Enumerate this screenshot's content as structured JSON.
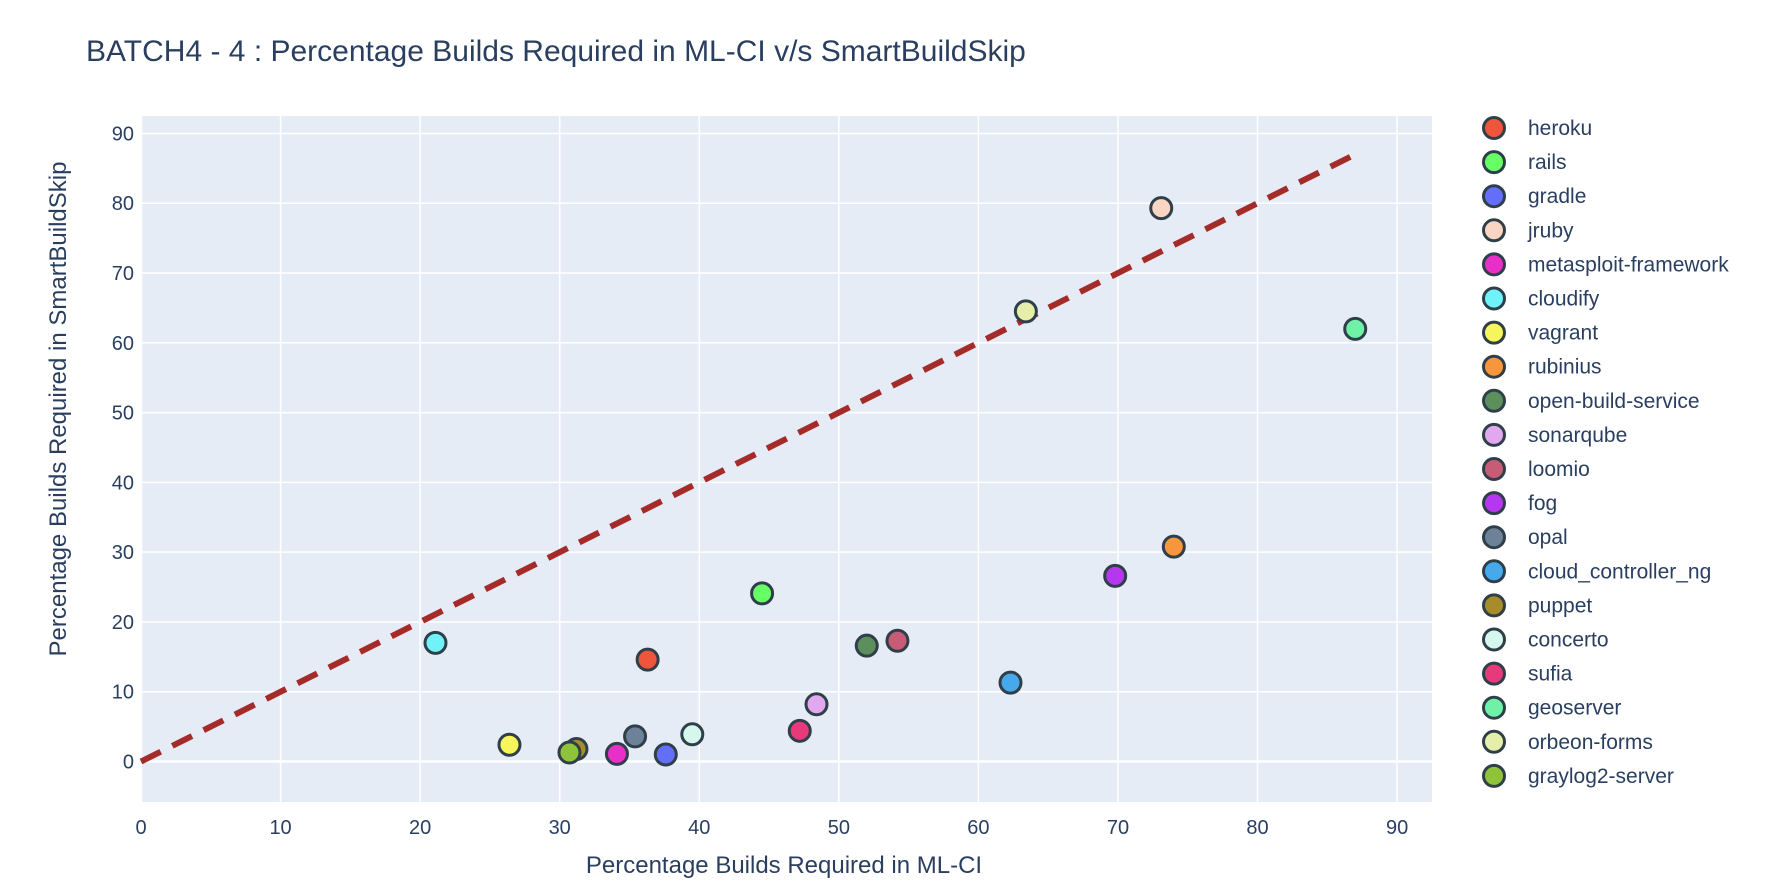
{
  "chart_data": {
    "type": "scatter",
    "title": "BATCH4 - 4 : Percentage Builds Required in ML-CI v/s SmartBuildSkip",
    "xlabel": "Percentage Builds Required in ML-CI",
    "ylabel": "Percentage Builds Required in SmartBuildSkip",
    "xlim": [
      0,
      92.5
    ],
    "ylim": [
      -5.8,
      92.5
    ],
    "x_ticks": [
      0,
      10,
      20,
      30,
      40,
      50,
      60,
      70,
      80,
      90
    ],
    "y_ticks": [
      0,
      10,
      20,
      30,
      40,
      50,
      60,
      70,
      80,
      90
    ],
    "grid": true,
    "legend_position": "right",
    "plot_bgcolor": "#e5ecf6",
    "reference_line": {
      "x": [
        0,
        87.3
      ],
      "y": [
        0,
        87.3
      ],
      "color": "#a52a2a",
      "style": "dash"
    },
    "series": [
      {
        "name": "heroku",
        "color": "#ef553b",
        "x": 36.3,
        "y": 14.6
      },
      {
        "name": "rails",
        "color": "#66ff66",
        "x": 44.5,
        "y": 24.1
      },
      {
        "name": "gradle",
        "color": "#636efa",
        "x": 37.6,
        "y": 1.0
      },
      {
        "name": "jruby",
        "color": "#fad5c4",
        "x": 73.1,
        "y": 79.3
      },
      {
        "name": "metasploit-framework",
        "color": "#e82fc8",
        "x": 34.1,
        "y": 1.1
      },
      {
        "name": "cloudify",
        "color": "#6ff3f8",
        "x": 21.1,
        "y": 17.0
      },
      {
        "name": "vagrant",
        "color": "#f7f55c",
        "x": 26.4,
        "y": 2.4
      },
      {
        "name": "rubinius",
        "color": "#f7963a",
        "x": 74.0,
        "y": 30.8
      },
      {
        "name": "open-build-service",
        "color": "#5c8f5c",
        "x": 52.0,
        "y": 16.6
      },
      {
        "name": "sonarqube",
        "color": "#e2a8ef",
        "x": 48.4,
        "y": 8.2
      },
      {
        "name": "loomio",
        "color": "#c75c76",
        "x": 54.2,
        "y": 17.3
      },
      {
        "name": "fog",
        "color": "#b537ef",
        "x": 69.8,
        "y": 26.6
      },
      {
        "name": "opal",
        "color": "#6d8299",
        "x": 35.4,
        "y": 3.6
      },
      {
        "name": "cloud_controller_ng",
        "color": "#46a9ec",
        "x": 62.3,
        "y": 11.3
      },
      {
        "name": "puppet",
        "color": "#a98c2a",
        "x": 31.2,
        "y": 1.8
      },
      {
        "name": "concerto",
        "color": "#d6f7ee",
        "x": 39.5,
        "y": 3.9
      },
      {
        "name": "sufia",
        "color": "#e8397a",
        "x": 47.2,
        "y": 4.4
      },
      {
        "name": "geoserver",
        "color": "#6ff2a8",
        "x": 87.0,
        "y": 62.0
      },
      {
        "name": "orbeon-forms",
        "color": "#e5efaa",
        "x": 63.4,
        "y": 64.5
      },
      {
        "name": "graylog2-server",
        "color": "#8fc43a",
        "x": 30.7,
        "y": 1.3
      }
    ]
  }
}
